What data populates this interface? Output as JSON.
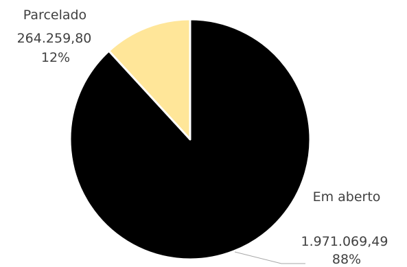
{
  "chart_data": {
    "type": "pie",
    "categories": [
      "Em aberto",
      "Parcelado"
    ],
    "values": [
      1971069.49,
      264259.8
    ],
    "value_labels": [
      "1.971.069,49",
      "264.259,80"
    ],
    "percent_labels": [
      "88%",
      "12%"
    ],
    "colors": [
      "#000000",
      "#ffe699"
    ],
    "start_angle_deg": 0,
    "direction": "clockwise",
    "legend": "none"
  }
}
